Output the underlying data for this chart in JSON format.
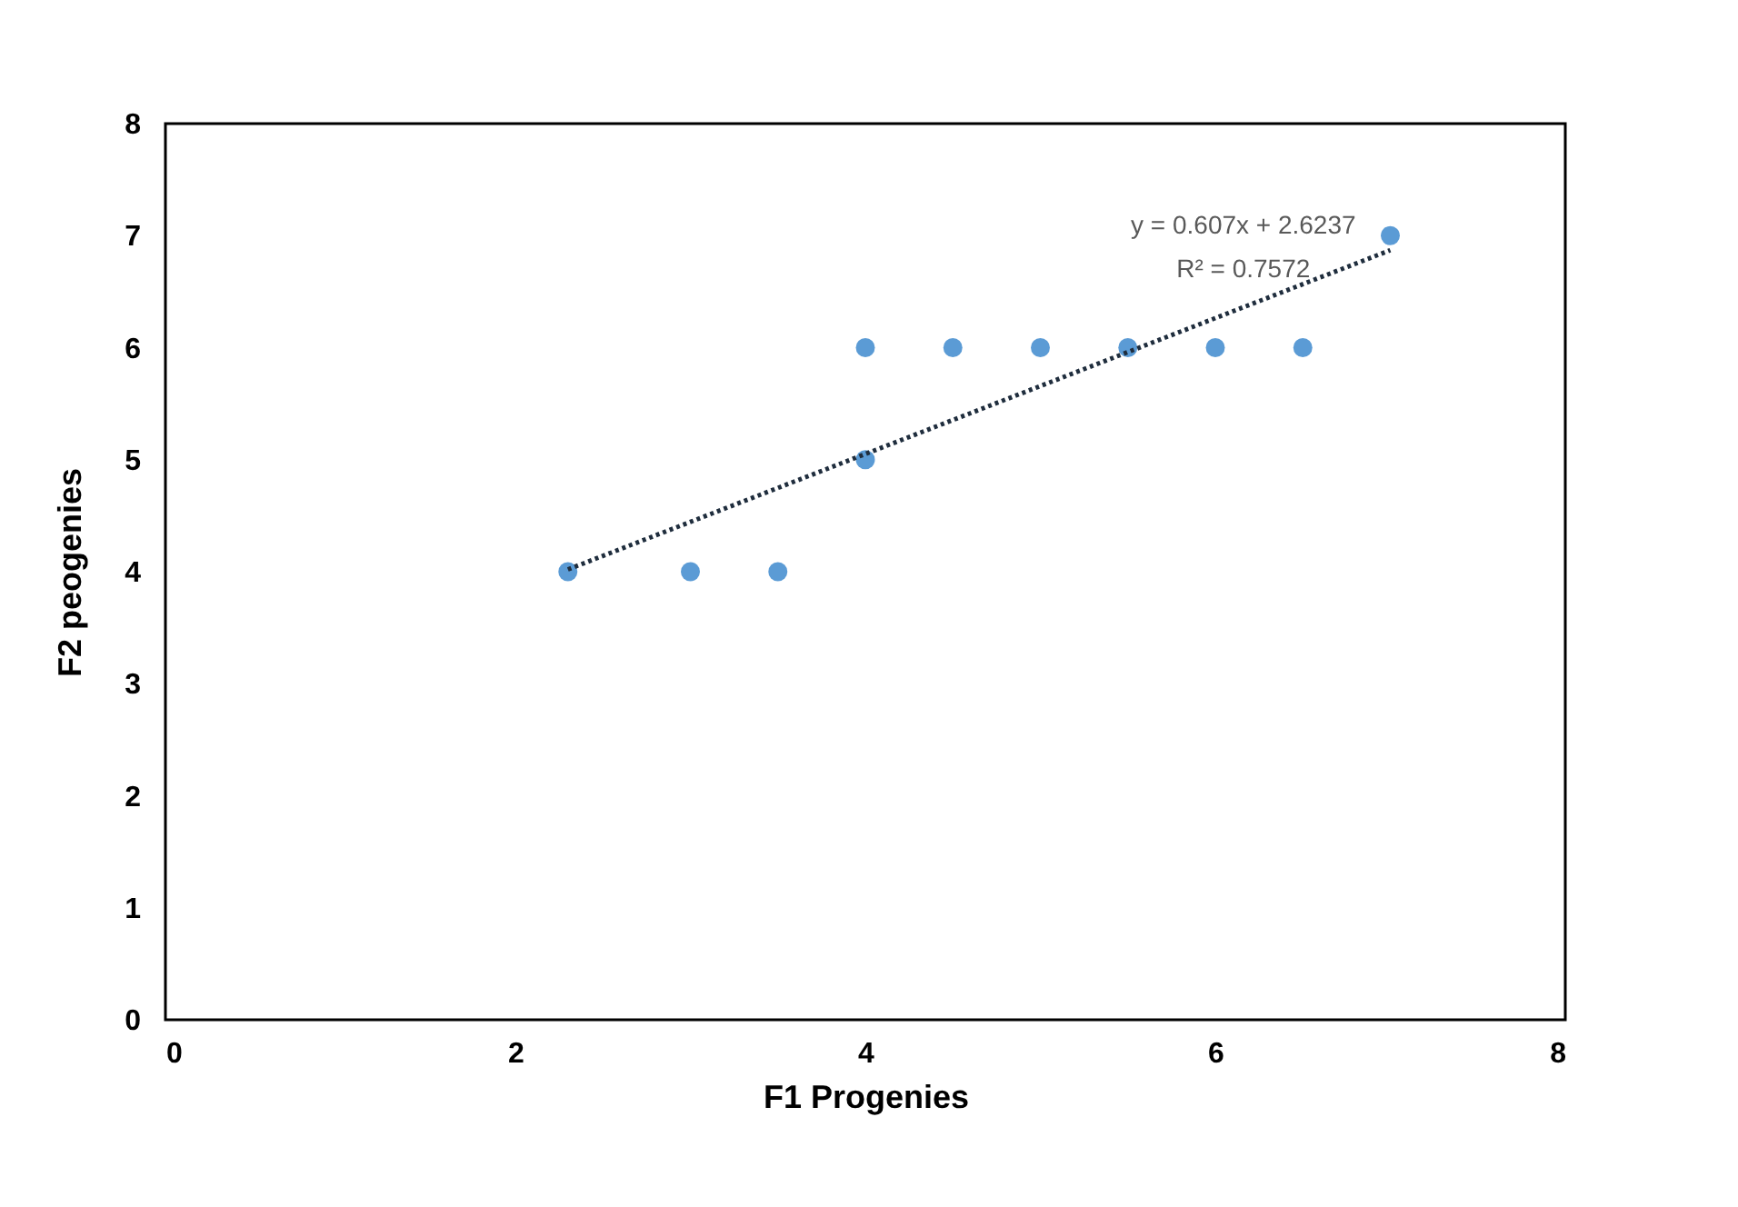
{
  "chart_data": {
    "type": "scatter",
    "xlabel": "F1 Progenies",
    "ylabel": "F2 peogenies",
    "xlim": [
      0,
      8
    ],
    "xticks": [
      0,
      2,
      4,
      6,
      8
    ],
    "ylim": [
      0,
      8
    ],
    "yticks": [
      0,
      1,
      2,
      3,
      4,
      5,
      6,
      7,
      8
    ],
    "grid": false,
    "series": [
      {
        "marker": "circle",
        "color": "#5b9bd5",
        "x": [
          2.3,
          3,
          3.5,
          4,
          4,
          4.5,
          5,
          5.5,
          6,
          6.5,
          7
        ],
        "values": [
          4,
          4,
          4,
          6,
          5,
          6,
          6,
          6,
          6,
          6,
          7
        ]
      },
      {
        "type": "line",
        "marker": "none",
        "color": "#1f2d3d",
        "line_style": "dotted",
        "x": [
          2.3,
          7
        ],
        "values": [
          4.02,
          6.87
        ]
      }
    ],
    "annotations": [
      "y = 0.607x + 2.6237",
      "R² = 0.7572"
    ]
  }
}
